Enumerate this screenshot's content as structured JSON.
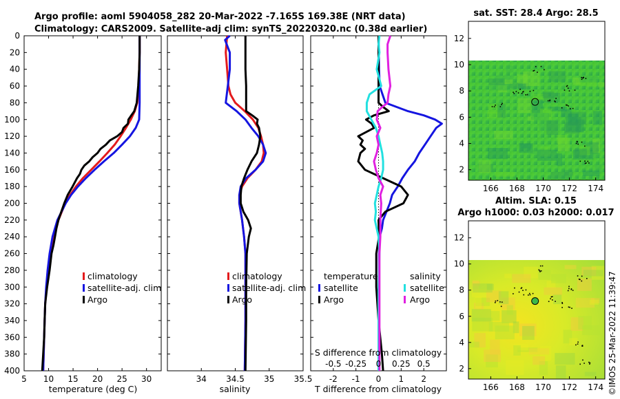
{
  "header": {
    "line1": "Argo profile: aoml 5904058_282 20-Mar-2022 -7.165S 169.38E (NRT data)",
    "line2": "Climatology: CARS2009. Satellite-adj clim: synTS_20220320.nc (0.38d earlier)"
  },
  "footer": {
    "credit": "©IMOS 25-Mar-2022 11:39:47"
  },
  "colors": {
    "climatology": "#e31a1c",
    "satellite": "#1515e0",
    "argo": "#000000",
    "sal_sat": "#22e0e0",
    "sal_argo": "#e020e0"
  },
  "chart_data": [
    {
      "type": "line",
      "panel": "temperature",
      "xlabel": "temperature (deg C)",
      "xlim": [
        5,
        33
      ],
      "xticks": [
        5,
        10,
        15,
        20,
        25,
        30
      ],
      "ylim": [
        0,
        400
      ],
      "yticks": [
        0,
        20,
        40,
        60,
        80,
        100,
        120,
        140,
        160,
        180,
        200,
        220,
        240,
        260,
        280,
        300,
        320,
        340,
        360,
        380,
        400
      ],
      "legend": [
        "climatology",
        "satellite-adj. clim",
        "Argo"
      ],
      "series": [
        {
          "name": "climatology",
          "depth": [
            0,
            20,
            40,
            60,
            80,
            90,
            100,
            110,
            120,
            130,
            140,
            150,
            160,
            170,
            180,
            190,
            200,
            220,
            240,
            260,
            280,
            300,
            320,
            340,
            360,
            380,
            400
          ],
          "values": [
            28.6,
            28.6,
            28.5,
            28.4,
            28.1,
            27.6,
            26.8,
            25.8,
            24.7,
            23.5,
            22.0,
            20.4,
            18.7,
            17.0,
            15.6,
            14.4,
            13.4,
            12.0,
            11.1,
            10.4,
            9.9,
            9.6,
            9.3,
            9.2,
            9.1,
            9.0,
            8.9
          ]
        },
        {
          "name": "satellite-adj. clim",
          "depth": [
            0,
            20,
            40,
            60,
            80,
            100,
            110,
            120,
            130,
            140,
            150,
            160,
            170,
            180,
            190,
            200,
            220,
            240,
            260,
            280,
            300,
            320,
            340,
            360,
            380,
            400
          ],
          "values": [
            28.6,
            28.6,
            28.6,
            28.6,
            28.6,
            28.5,
            27.8,
            26.6,
            25.0,
            23.3,
            21.3,
            19.4,
            17.6,
            16.0,
            14.6,
            13.5,
            11.8,
            10.8,
            10.2,
            9.8,
            9.5,
            9.3,
            9.2,
            9.1,
            9.0,
            8.9
          ]
        },
        {
          "name": "Argo",
          "depth": [
            0,
            20,
            40,
            60,
            80,
            90,
            95,
            100,
            105,
            110,
            115,
            120,
            125,
            130,
            135,
            140,
            145,
            150,
            155,
            160,
            165,
            170,
            180,
            190,
            200,
            210,
            220,
            230,
            240,
            250,
            260,
            280,
            300,
            320,
            340,
            360,
            380,
            400
          ],
          "values": [
            28.6,
            28.6,
            28.5,
            28.3,
            28.0,
            27.5,
            26.9,
            26.3,
            26.2,
            25.3,
            25.0,
            24.0,
            22.5,
            21.7,
            20.6,
            20.0,
            19.0,
            18.3,
            17.3,
            16.7,
            16.4,
            15.8,
            14.9,
            13.9,
            13.2,
            12.6,
            12.0,
            11.6,
            11.3,
            11.0,
            10.6,
            10.2,
            9.7,
            9.3,
            9.2,
            9.1,
            8.9,
            8.7
          ]
        }
      ]
    },
    {
      "type": "line",
      "panel": "salinity",
      "xlabel": "salinity",
      "xlim": [
        33.5,
        35.5
      ],
      "xticks": [
        34,
        34.5,
        35,
        35.5
      ],
      "ylim": [
        0,
        400
      ],
      "legend": [
        "climatology",
        "satellite-adj. clim",
        "Argo"
      ],
      "series": [
        {
          "name": "climatology",
          "depth": [
            0,
            20,
            40,
            60,
            70,
            80,
            90,
            100,
            110,
            120,
            130,
            140,
            150,
            160,
            170,
            180,
            190,
            200,
            220,
            240,
            260,
            300,
            340,
            400
          ],
          "values": [
            34.38,
            34.36,
            34.38,
            34.4,
            34.43,
            34.5,
            34.64,
            34.76,
            34.84,
            34.88,
            34.91,
            34.92,
            34.89,
            34.8,
            34.68,
            34.6,
            34.56,
            34.56,
            34.6,
            34.63,
            34.65,
            34.65,
            34.65,
            34.64
          ]
        },
        {
          "name": "satellite-adj. clim",
          "depth": [
            0,
            5,
            20,
            40,
            60,
            80,
            90,
            100,
            110,
            120,
            130,
            140,
            150,
            160,
            170,
            180,
            190,
            200,
            220,
            240,
            260,
            300,
            340,
            400
          ],
          "values": [
            34.42,
            34.35,
            34.42,
            34.42,
            34.39,
            34.36,
            34.52,
            34.65,
            34.74,
            34.84,
            34.91,
            34.95,
            34.91,
            34.8,
            34.66,
            34.58,
            34.56,
            34.56,
            34.6,
            34.63,
            34.65,
            34.65,
            34.65,
            34.64
          ]
        },
        {
          "name": "Argo",
          "depth": [
            0,
            20,
            40,
            60,
            80,
            90,
            95,
            100,
            105,
            110,
            120,
            130,
            140,
            150,
            160,
            170,
            180,
            190,
            200,
            210,
            220,
            230,
            240,
            260,
            300,
            340,
            400
          ],
          "values": [
            34.65,
            34.65,
            34.65,
            34.66,
            34.66,
            34.66,
            34.75,
            34.83,
            34.82,
            34.85,
            34.87,
            34.85,
            34.82,
            34.74,
            34.68,
            34.63,
            34.59,
            34.58,
            34.58,
            34.62,
            34.69,
            34.73,
            34.7,
            34.67,
            34.66,
            34.66,
            34.65
          ]
        }
      ]
    },
    {
      "type": "line",
      "panel": "difference from climatology",
      "xlabel": "T difference from climatology",
      "xlim": [
        -3,
        3
      ],
      "xticks": [
        -2,
        -1,
        0,
        1,
        2
      ],
      "top_axis_label": "S difference from climatology",
      "top_axis_ticks": [
        "-0.5",
        "-0.25",
        "0",
        "0.25",
        "0.5"
      ],
      "top_axis_range": [
        -0.75,
        0.75
      ],
      "ylim": [
        0,
        400
      ],
      "legend_groups": [
        {
          "title": "temperature",
          "entries": [
            "satellite",
            "Argo"
          ]
        },
        {
          "title": "salinity",
          "entries": [
            "satellite",
            "Argo"
          ]
        }
      ],
      "series": [
        {
          "name": "temperature satellite",
          "depth": [
            0,
            40,
            60,
            80,
            90,
            95,
            100,
            105,
            110,
            120,
            130,
            140,
            150,
            160,
            170,
            180,
            190,
            200,
            210,
            220,
            230,
            240,
            260,
            300,
            340,
            400
          ],
          "values": [
            0,
            0.02,
            0.05,
            0.3,
            1.3,
            2.0,
            2.5,
            2.8,
            2.55,
            2.3,
            2.05,
            1.8,
            1.6,
            1.3,
            1.05,
            0.85,
            0.6,
            0.5,
            0.35,
            0.2,
            0.15,
            0.05,
            0.02,
            0.02,
            0.02,
            0.02
          ]
        },
        {
          "name": "temperature Argo",
          "depth": [
            0,
            60,
            80,
            85,
            90,
            95,
            100,
            105,
            110,
            120,
            125,
            130,
            135,
            140,
            150,
            160,
            170,
            180,
            190,
            200,
            210,
            220,
            240,
            260,
            300,
            340,
            380,
            400
          ],
          "values": [
            0,
            0,
            0,
            0.2,
            0.45,
            -0.2,
            -0.55,
            -0.3,
            -0.2,
            -0.9,
            -0.7,
            -0.8,
            -0.6,
            -0.8,
            -0.9,
            -0.6,
            0.2,
            1.0,
            1.3,
            1.1,
            0.3,
            0.0,
            0.02,
            -0.1,
            -0.1,
            0.0,
            0.15,
            0.2
          ]
        },
        {
          "name": "salinity satellite",
          "depth": [
            0,
            10,
            20,
            40,
            60,
            70,
            80,
            90,
            100,
            110,
            120,
            130,
            140,
            150,
            160,
            170,
            180,
            190,
            200,
            210,
            220,
            240,
            260,
            300,
            340,
            400
          ],
          "values": [
            0.01,
            0.0,
            0.01,
            -0.02,
            0.03,
            -0.1,
            -0.13,
            -0.13,
            -0.08,
            -0.03,
            0.0,
            0.02,
            0.04,
            0.05,
            0.05,
            0.03,
            0.0,
            -0.02,
            -0.04,
            -0.03,
            -0.04,
            0.0,
            0.01,
            0.0,
            0.0,
            0.0
          ]
        },
        {
          "name": "salinity Argo",
          "depth": [
            0,
            10,
            20,
            40,
            60,
            70,
            80,
            85,
            90,
            100,
            110,
            120,
            130,
            140,
            150,
            160,
            170,
            180,
            190,
            200,
            220,
            240,
            260,
            300,
            340,
            400
          ],
          "values": [
            0.13,
            0.1,
            0.1,
            0.11,
            0.13,
            0.11,
            0.1,
            0.04,
            -0.01,
            -0.02,
            0.02,
            -0.02,
            0.0,
            -0.02,
            -0.05,
            -0.03,
            0.0,
            0.05,
            0.02,
            0.03,
            0.02,
            0.02,
            0.01,
            0.01,
            0.01,
            0.01
          ]
        }
      ]
    },
    {
      "type": "heatmap",
      "panel": "sat. SST map",
      "title": "sat. SST: 28.4 Argo: 28.5",
      "xlim": [
        164.3,
        174.7
      ],
      "xticks": [
        166,
        168,
        170,
        172,
        174
      ],
      "ylim": [
        1.2,
        13.3
      ],
      "yticks": [
        2,
        4,
        6,
        8,
        10,
        12
      ],
      "data_extent_lat": [
        1.2,
        10.1
      ],
      "argo_position": {
        "lon": 169.38,
        "lat": 7.165
      },
      "fill": "green"
    },
    {
      "type": "heatmap",
      "panel": "altimetry SLA map",
      "title_line1": "Altim. SLA: 0.15",
      "title_line2": "Argo h1000: 0.03 h2000: 0.017",
      "xlim": [
        164.3,
        174.7
      ],
      "xticks": [
        166,
        168,
        170,
        172,
        174
      ],
      "ylim": [
        1.2,
        13.3
      ],
      "yticks": [
        2,
        4,
        6,
        8,
        10,
        12
      ],
      "data_extent_lat": [
        1.2,
        10.1
      ],
      "argo_position": {
        "lon": 169.38,
        "lat": 7.165
      },
      "fill": "yellow-green"
    }
  ]
}
